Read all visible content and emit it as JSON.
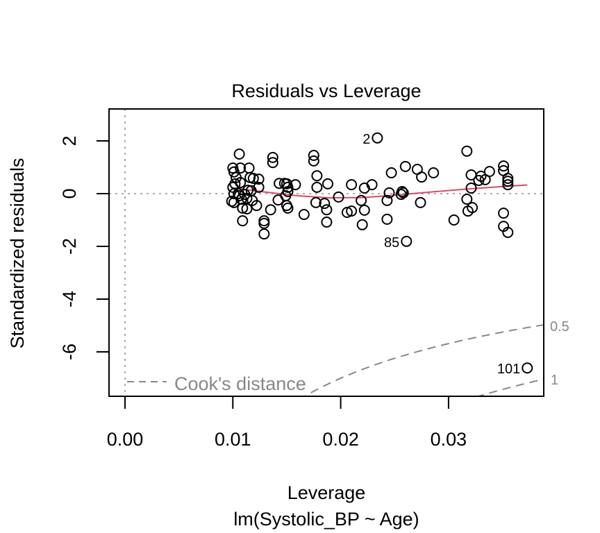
{
  "chart_data": {
    "type": "scatter",
    "title": "Residuals vs Leverage",
    "xlabel": "Leverage",
    "sublabel": "lm(Systolic_BP ~ Age)",
    "ylabel": "Standardized residuals",
    "xlim": [
      -0.0015,
      0.0388
    ],
    "ylim": [
      -7.7,
      3.15
    ],
    "xticks": [
      0.0,
      0.01,
      0.02,
      0.03
    ],
    "xtick_labels": [
      "0.00",
      "0.01",
      "0.02",
      "0.03"
    ],
    "yticks": [
      2,
      0,
      -2,
      -4,
      -6
    ],
    "ytick_labels": [
      "2",
      "0",
      "-2",
      "-4",
      "-6"
    ],
    "reference_lines": {
      "h": 0,
      "v": 0,
      "style": "dotted",
      "color": "#aaaaaa"
    },
    "legend": {
      "text": "Cook's distance",
      "position": "bottom-left",
      "color": "#888888"
    },
    "cooks_contours": [
      {
        "level": 0.5,
        "label": "0.5"
      },
      {
        "level": 1,
        "label": "1"
      }
    ],
    "smoother_color": "#D94A6A",
    "smoother": {
      "x": [
        0.01,
        0.013,
        0.016,
        0.019,
        0.022,
        0.025,
        0.028,
        0.031,
        0.034,
        0.0373
      ],
      "y": [
        0.22,
        0.06,
        -0.08,
        -0.16,
        -0.15,
        -0.06,
        0.05,
        0.15,
        0.24,
        0.33
      ]
    },
    "points": [
      {
        "x": 0.01,
        "y": 0.97
      },
      {
        "x": 0.0101,
        "y": 0.82
      },
      {
        "x": 0.0102,
        "y": 0.37
      },
      {
        "x": 0.01,
        "y": 0.24
      },
      {
        "x": 0.0101,
        "y": 0.0
      },
      {
        "x": 0.0099,
        "y": -0.29
      },
      {
        "x": 0.0101,
        "y": -0.34
      },
      {
        "x": 0.0103,
        "y": 0.61
      },
      {
        "x": 0.0105,
        "y": 0.0
      },
      {
        "x": 0.0106,
        "y": 1.5
      },
      {
        "x": 0.0107,
        "y": 0.97
      },
      {
        "x": 0.0107,
        "y": 0.42
      },
      {
        "x": 0.0106,
        "y": -0.08
      },
      {
        "x": 0.0108,
        "y": -0.21
      },
      {
        "x": 0.0109,
        "y": -0.55
      },
      {
        "x": 0.0109,
        "y": -1.03
      },
      {
        "x": 0.0111,
        "y": -0.03
      },
      {
        "x": 0.0113,
        "y": -0.18
      },
      {
        "x": 0.0114,
        "y": 0.13
      },
      {
        "x": 0.0113,
        "y": -0.58
      },
      {
        "x": 0.0115,
        "y": 0.97
      },
      {
        "x": 0.0116,
        "y": 0.61
      },
      {
        "x": 0.0117,
        "y": 0.11
      },
      {
        "x": 0.0118,
        "y": -0.26
      },
      {
        "x": 0.0119,
        "y": 0.58
      },
      {
        "x": 0.0122,
        "y": -0.45
      },
      {
        "x": 0.0124,
        "y": 0.24
      },
      {
        "x": 0.0124,
        "y": 0.55
      },
      {
        "x": 0.0129,
        "y": -1.03
      },
      {
        "x": 0.0129,
        "y": -1.13
      },
      {
        "x": 0.0129,
        "y": -1.53
      },
      {
        "x": 0.0137,
        "y": 1.37
      },
      {
        "x": 0.0137,
        "y": 1.18
      },
      {
        "x": 0.0135,
        "y": -0.61
      },
      {
        "x": 0.0142,
        "y": -0.24
      },
      {
        "x": 0.0143,
        "y": 0.39
      },
      {
        "x": 0.0148,
        "y": 0.39
      },
      {
        "x": 0.015,
        "y": 0.37
      },
      {
        "x": 0.0149,
        "y": -0.08
      },
      {
        "x": 0.0151,
        "y": -0.55
      },
      {
        "x": 0.015,
        "y": -0.45
      },
      {
        "x": 0.0151,
        "y": 0.08
      },
      {
        "x": 0.0151,
        "y": 0.24
      },
      {
        "x": 0.0158,
        "y": 0.34
      },
      {
        "x": 0.0166,
        "y": -0.79
      },
      {
        "x": 0.0175,
        "y": 1.45
      },
      {
        "x": 0.0175,
        "y": 1.24
      },
      {
        "x": 0.0178,
        "y": 0.68
      },
      {
        "x": 0.0178,
        "y": 0.24
      },
      {
        "x": 0.0177,
        "y": -0.34
      },
      {
        "x": 0.0185,
        "y": -0.37
      },
      {
        "x": 0.0187,
        "y": -1.08
      },
      {
        "x": 0.0187,
        "y": -0.61
      },
      {
        "x": 0.0188,
        "y": 0.37
      },
      {
        "x": 0.0198,
        "y": -0.13
      },
      {
        "x": 0.0206,
        "y": -0.71
      },
      {
        "x": 0.021,
        "y": -0.66
      },
      {
        "x": 0.021,
        "y": 0.34
      },
      {
        "x": 0.0219,
        "y": -0.26
      },
      {
        "x": 0.022,
        "y": -1.18
      },
      {
        "x": 0.0222,
        "y": -0.63
      },
      {
        "x": 0.0222,
        "y": 0.21
      },
      {
        "x": 0.0229,
        "y": 0.34
      },
      {
        "x": 0.0234,
        "y": 2.11,
        "label": "2"
      },
      {
        "x": 0.0243,
        "y": -0.97
      },
      {
        "x": 0.0243,
        "y": -0.26
      },
      {
        "x": 0.0245,
        "y": 0.03
      },
      {
        "x": 0.0247,
        "y": 0.79
      },
      {
        "x": 0.0256,
        "y": -0.03
      },
      {
        "x": 0.0257,
        "y": 0.08
      },
      {
        "x": 0.0258,
        "y": 0.03
      },
      {
        "x": 0.026,
        "y": 1.03
      },
      {
        "x": 0.0261,
        "y": -1.81,
        "label": "85"
      },
      {
        "x": 0.0271,
        "y": 0.92
      },
      {
        "x": 0.0274,
        "y": -0.34
      },
      {
        "x": 0.0275,
        "y": 0.63
      },
      {
        "x": 0.0286,
        "y": 0.79
      },
      {
        "x": 0.0305,
        "y": -1.0
      },
      {
        "x": 0.0317,
        "y": 1.61
      },
      {
        "x": 0.0317,
        "y": -0.21
      },
      {
        "x": 0.0318,
        "y": -0.66
      },
      {
        "x": 0.0321,
        "y": 0.71
      },
      {
        "x": 0.0321,
        "y": 0.21
      },
      {
        "x": 0.0322,
        "y": -0.53
      },
      {
        "x": 0.0328,
        "y": 0.5
      },
      {
        "x": 0.033,
        "y": 0.66
      },
      {
        "x": 0.0334,
        "y": 0.53
      },
      {
        "x": 0.0338,
        "y": 0.84
      },
      {
        "x": 0.0351,
        "y": 1.05
      },
      {
        "x": 0.0351,
        "y": 0.87
      },
      {
        "x": 0.0351,
        "y": -0.74
      },
      {
        "x": 0.0351,
        "y": -1.24
      },
      {
        "x": 0.0355,
        "y": 0.58
      },
      {
        "x": 0.0355,
        "y": 0.47
      },
      {
        "x": 0.0355,
        "y": 0.34
      },
      {
        "x": 0.0355,
        "y": -1.47
      },
      {
        "x": 0.0373,
        "y": -6.61,
        "label": "101"
      }
    ]
  }
}
